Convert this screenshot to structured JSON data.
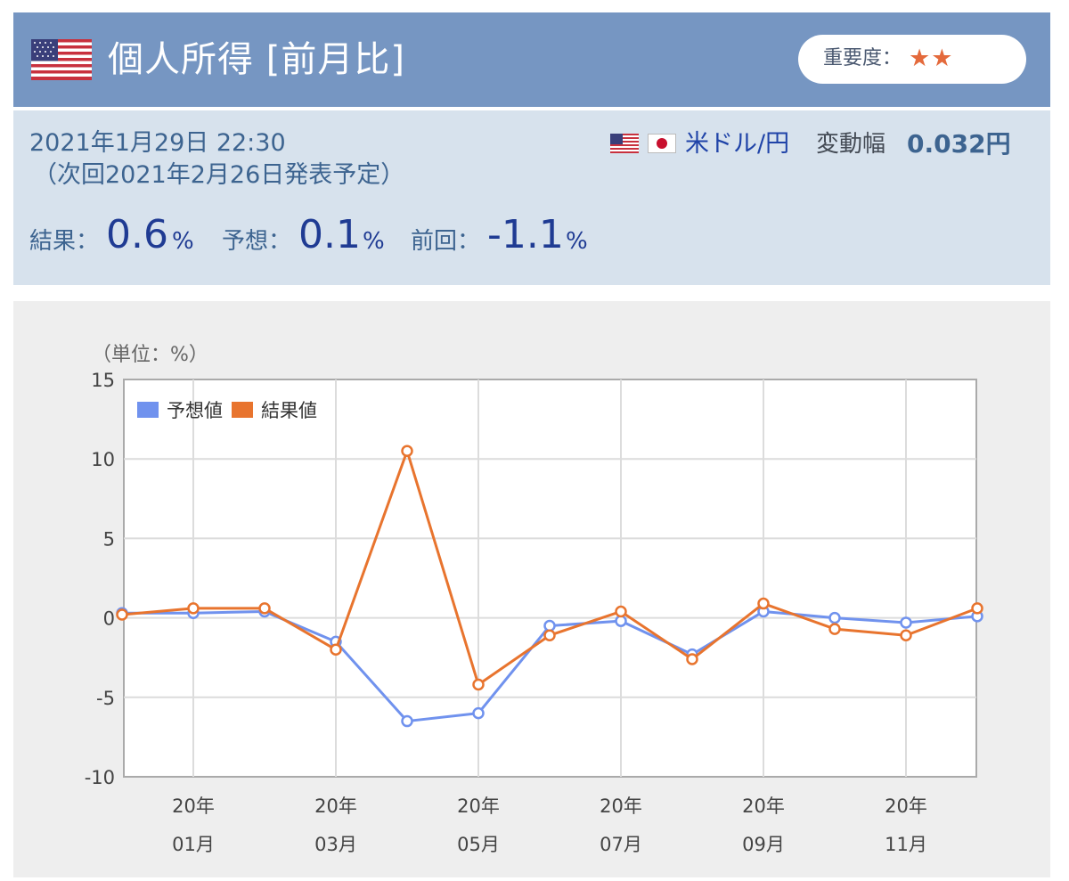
{
  "header": {
    "title": "個人所得 [前月比]",
    "importance_label": "重要度：",
    "importance_stars": "★★",
    "flag_icon": "us-flag-icon",
    "color": "#7696c2"
  },
  "info": {
    "datetime": "2021年1月29日 22:30",
    "next_release": "（次回2021年2月26日発表予定）",
    "pair": "米ドル/円",
    "range_label": "変動幅",
    "range_value": "0.032円",
    "result_label": "結果：",
    "result_value": "0.6",
    "forecast_label": "予想：",
    "forecast_value": "0.1",
    "previous_label": "前回：",
    "previous_value": "-1.1",
    "unit": "%"
  },
  "chart_data": {
    "type": "line",
    "unit_label": "（単位：%）",
    "ylim": [
      -10,
      15
    ],
    "yticks": [
      -10,
      -5,
      0,
      5,
      10,
      15
    ],
    "grid": true,
    "legend_position": "top-left",
    "x_tick_labels": [
      {
        "line1": "20年",
        "line2": "01月",
        "index": 1
      },
      {
        "line1": "20年",
        "line2": "03月",
        "index": 3
      },
      {
        "line1": "20年",
        "line2": "05月",
        "index": 5
      },
      {
        "line1": "20年",
        "line2": "07月",
        "index": 7
      },
      {
        "line1": "20年",
        "line2": "09月",
        "index": 9
      },
      {
        "line1": "20年",
        "line2": "11月",
        "index": 11
      }
    ],
    "categories": [
      "2019-12",
      "2020-01",
      "2020-02",
      "2020-03",
      "2020-04",
      "2020-05",
      "2020-06",
      "2020-07",
      "2020-08",
      "2020-09",
      "2020-10",
      "2020-11",
      "2020-12"
    ],
    "series": [
      {
        "name": "予想値",
        "color": "#7092ee",
        "values": [
          0.3,
          0.3,
          0.4,
          -1.5,
          -6.5,
          -6.0,
          -0.5,
          -0.2,
          -2.3,
          0.4,
          0.0,
          -0.3,
          0.1
        ]
      },
      {
        "name": "結果値",
        "color": "#e8742e",
        "values": [
          0.2,
          0.6,
          0.6,
          -2.0,
          10.5,
          -4.2,
          -1.1,
          0.4,
          -2.6,
          0.9,
          -0.7,
          -1.1,
          0.6
        ]
      }
    ]
  }
}
